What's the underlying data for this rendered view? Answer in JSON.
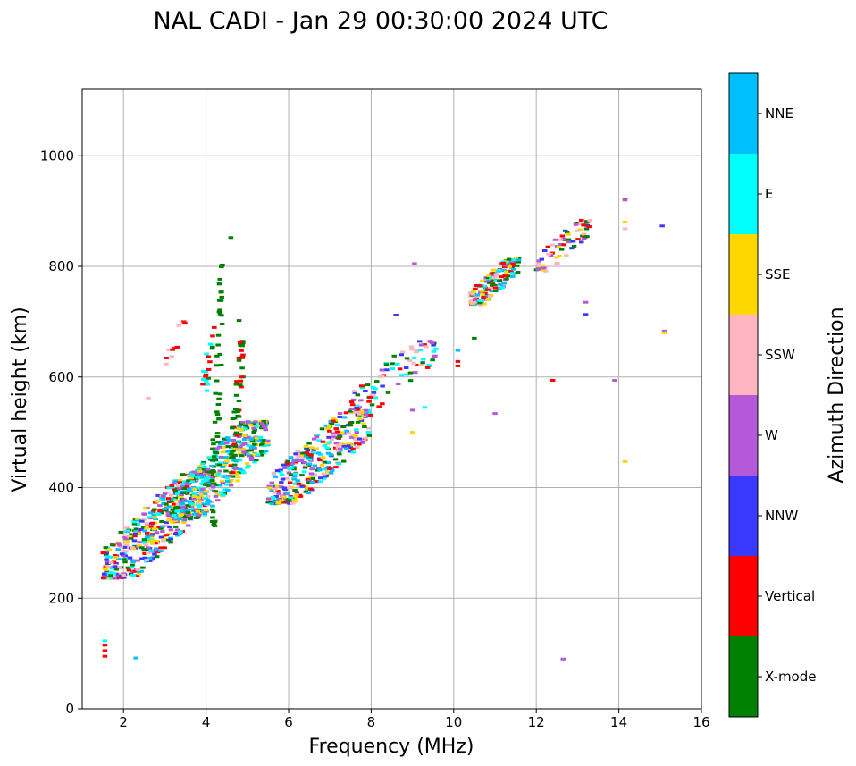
{
  "chart_data": {
    "type": "scatter",
    "title": "NAL CADI - Jan 29 00:30:00 2024 UTC",
    "xlabel": "Frequency (MHz)",
    "ylabel": "Virtual height (km)",
    "xlim": [
      1,
      16
    ],
    "ylim": [
      0,
      1120
    ],
    "xticks": [
      2,
      4,
      6,
      8,
      10,
      12,
      14,
      16
    ],
    "yticks": [
      0,
      200,
      400,
      600,
      800,
      1000
    ],
    "grid": true,
    "colorbar": {
      "title": "Azimuth Direction",
      "categories": [
        {
          "name": "X-mode",
          "color": "#008000"
        },
        {
          "name": "Vertical",
          "color": "#ff0000"
        },
        {
          "name": "NNW",
          "color": "#3a3aff"
        },
        {
          "name": "W",
          "color": "#b45ad8"
        },
        {
          "name": "SSW",
          "color": "#ffb6c1"
        },
        {
          "name": "SSE",
          "color": "#ffd700"
        },
        {
          "name": "E",
          "color": "#00ffff"
        },
        {
          "name": "NNE",
          "color": "#00bfff"
        }
      ]
    },
    "clusters": [
      {
        "name": "low-band",
        "f": [
          1.5,
          4.2
        ],
        "h": [
          235,
          430
        ],
        "cats": [
          "SSE",
          "E",
          "Vertical",
          "SSW",
          "NNE",
          "X-mode",
          "W",
          "NNW"
        ],
        "n": 520
      },
      {
        "name": "spread-f-band",
        "f": [
          3.2,
          5.5
        ],
        "h": [
          340,
          520
        ],
        "cats": [
          "E",
          "NNE",
          "SSE",
          "X-mode",
          "W"
        ],
        "n": 380
      },
      {
        "name": "mid-band",
        "f": [
          5.5,
          8.0
        ],
        "h": [
          370,
          540
        ],
        "cats": [
          "W",
          "SSE",
          "NNW",
          "E",
          "SSW",
          "X-mode",
          "Vertical",
          "NNE"
        ],
        "n": 360
      },
      {
        "name": "upper-trace",
        "f": [
          7.5,
          9.6
        ],
        "h": [
          540,
          665
        ],
        "cats": [
          "NNW",
          "E",
          "X-mode",
          "Vertical",
          "W",
          "SSW"
        ],
        "n": 90
      },
      {
        "name": "f-cluster-11mhz",
        "f": [
          10.4,
          11.6
        ],
        "h": [
          730,
          815
        ],
        "cats": [
          "Vertical",
          "E",
          "X-mode",
          "SSW",
          "W",
          "NNE",
          "SSE"
        ],
        "n": 180
      },
      {
        "name": "f-cluster-12mhz",
        "f": [
          12.0,
          13.3
        ],
        "h": [
          790,
          885
        ],
        "cats": [
          "Vertical",
          "X-mode",
          "SSE",
          "SSW",
          "NNW",
          "W"
        ],
        "n": 70
      },
      {
        "name": "x-mode-column-4.3",
        "f": [
          4.15,
          4.4
        ],
        "h": [
          330,
          805
        ],
        "cats": [
          "X-mode"
        ],
        "n": 60
      },
      {
        "name": "x-mode-column-4.7",
        "f": [
          4.6,
          4.9
        ],
        "h": [
          420,
          665
        ],
        "cats": [
          "X-mode",
          "X-mode",
          "Vertical"
        ],
        "n": 60
      },
      {
        "name": "column-3.3",
        "f": [
          3.0,
          3.5
        ],
        "h": [
          620,
          700
        ],
        "cats": [
          "Vertical",
          "SSW"
        ],
        "n": 12
      },
      {
        "name": "column-4.0",
        "f": [
          3.9,
          4.2
        ],
        "h": [
          560,
          690
        ],
        "cats": [
          "Vertical",
          "E",
          "X-mode"
        ],
        "n": 20
      }
    ],
    "isolated_points": [
      {
        "f": 1.55,
        "h": 95,
        "cat": "Vertical"
      },
      {
        "f": 1.55,
        "h": 105,
        "cat": "Vertical"
      },
      {
        "f": 1.55,
        "h": 115,
        "cat": "Vertical"
      },
      {
        "f": 1.55,
        "h": 123,
        "cat": "E"
      },
      {
        "f": 2.3,
        "h": 92,
        "cat": "NNE"
      },
      {
        "f": 2.6,
        "h": 562,
        "cat": "SSW"
      },
      {
        "f": 4.6,
        "h": 852,
        "cat": "X-mode"
      },
      {
        "f": 4.8,
        "h": 702,
        "cat": "X-mode"
      },
      {
        "f": 8.6,
        "h": 712,
        "cat": "NNW"
      },
      {
        "f": 9.05,
        "h": 805,
        "cat": "W"
      },
      {
        "f": 9.0,
        "h": 500,
        "cat": "SSE"
      },
      {
        "f": 9.0,
        "h": 540,
        "cat": "W"
      },
      {
        "f": 9.3,
        "h": 545,
        "cat": "E"
      },
      {
        "f": 10.1,
        "h": 628,
        "cat": "Vertical"
      },
      {
        "f": 10.1,
        "h": 620,
        "cat": "Vertical"
      },
      {
        "f": 10.1,
        "h": 648,
        "cat": "NNE"
      },
      {
        "f": 10.5,
        "h": 670,
        "cat": "X-mode"
      },
      {
        "f": 11.0,
        "h": 534,
        "cat": "W"
      },
      {
        "f": 12.4,
        "h": 594,
        "cat": "Vertical"
      },
      {
        "f": 12.65,
        "h": 90,
        "cat": "W"
      },
      {
        "f": 13.2,
        "h": 735,
        "cat": "W"
      },
      {
        "f": 13.2,
        "h": 713,
        "cat": "NNW"
      },
      {
        "f": 13.9,
        "h": 594,
        "cat": "W"
      },
      {
        "f": 14.15,
        "h": 922,
        "cat": "Vertical"
      },
      {
        "f": 14.15,
        "h": 920,
        "cat": "W"
      },
      {
        "f": 14.15,
        "h": 880,
        "cat": "SSE"
      },
      {
        "f": 14.15,
        "h": 868,
        "cat": "SSW"
      },
      {
        "f": 14.15,
        "h": 447,
        "cat": "SSE"
      },
      {
        "f": 15.05,
        "h": 873,
        "cat": "NNW"
      },
      {
        "f": 15.1,
        "h": 683,
        "cat": "W"
      },
      {
        "f": 15.1,
        "h": 680,
        "cat": "SSE"
      }
    ]
  }
}
